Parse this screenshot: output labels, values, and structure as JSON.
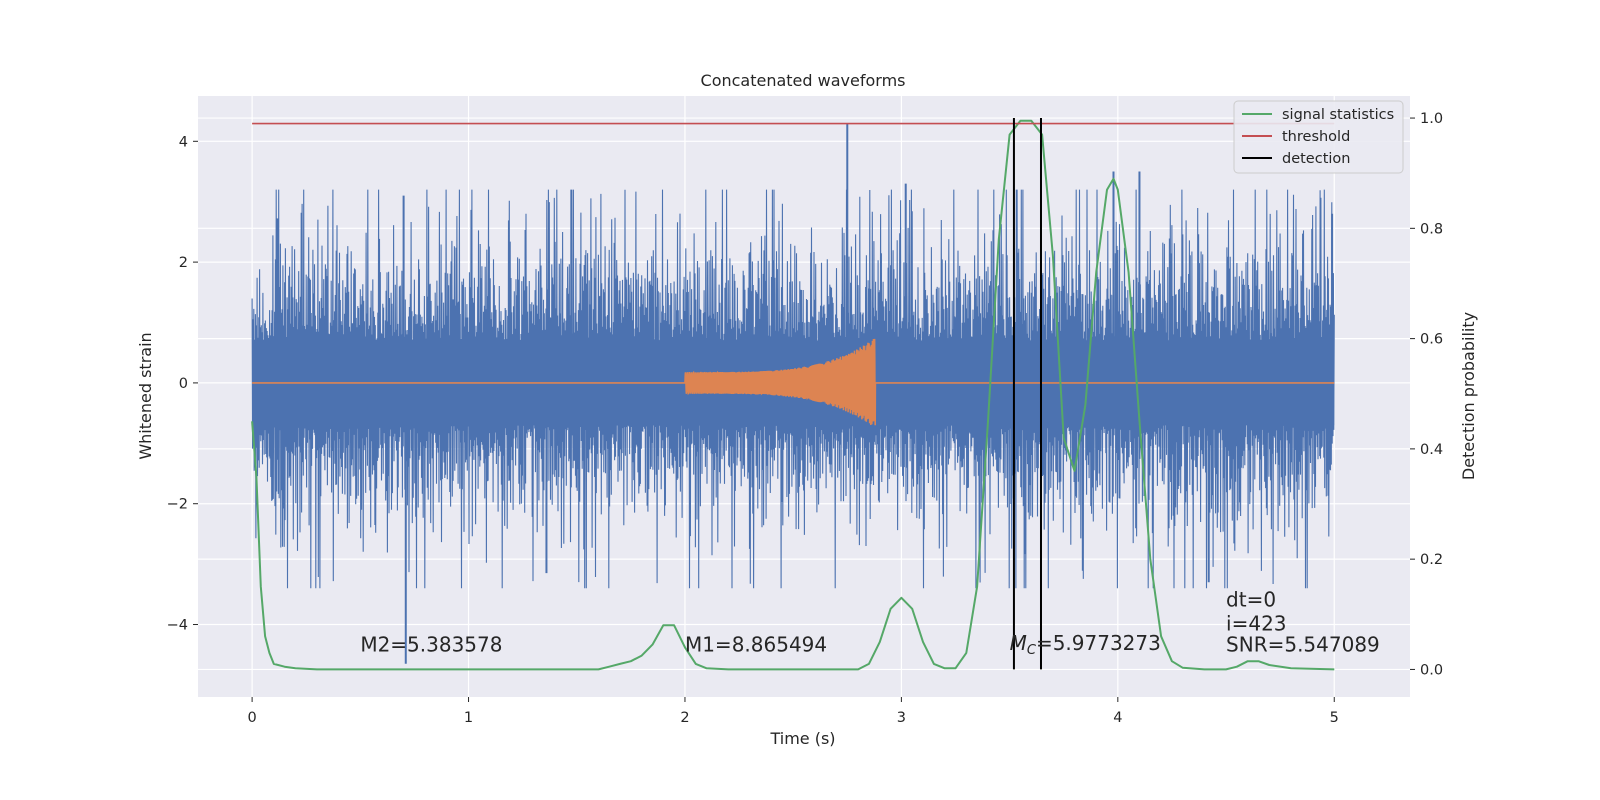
{
  "chart_data": {
    "type": "line",
    "title": "Concatenated waveforms",
    "xlabel": "Time (s)",
    "ylabel": "Whitened strain",
    "y2label": "Detection probability",
    "xlim": [
      -0.25,
      5.35
    ],
    "ylim": [
      -5.2,
      4.75
    ],
    "y2lim": [
      -0.05,
      1.04
    ],
    "xticks": [
      0,
      1,
      2,
      3,
      4,
      5
    ],
    "yticks": [
      -4,
      -2,
      0,
      2,
      4
    ],
    "y2ticks": [
      0.0,
      0.2,
      0.4,
      0.6,
      0.8,
      1.0
    ],
    "xtick_labels": [
      "0",
      "1",
      "2",
      "3",
      "4",
      "5"
    ],
    "ytick_labels": [
      "−4",
      "−2",
      "0",
      "2",
      "4"
    ],
    "y2tick_labels": [
      "0.0",
      "0.2",
      "0.4",
      "0.6",
      "0.8",
      "1.0"
    ],
    "grid": true,
    "legend_position": "top-right",
    "colors": {
      "strain": "#4c72b0",
      "template": "#dd8452",
      "signal_statistics": "#55a868",
      "threshold": "#c44e52",
      "detection": "#000000",
      "background": "#eaeaf2"
    },
    "series": [
      {
        "name": "signal statistics",
        "axis": "right",
        "x": [
          0.0,
          0.02,
          0.04,
          0.06,
          0.08,
          0.1,
          0.15,
          0.2,
          0.3,
          0.5,
          1.0,
          1.5,
          1.6,
          1.65,
          1.7,
          1.75,
          1.8,
          1.85,
          1.9,
          1.95,
          2.0,
          2.05,
          2.1,
          2.2,
          2.5,
          2.8,
          2.85,
          2.9,
          2.95,
          3.0,
          3.05,
          3.1,
          3.15,
          3.2,
          3.25,
          3.3,
          3.35,
          3.4,
          3.45,
          3.5,
          3.55,
          3.6,
          3.65,
          3.7,
          3.75,
          3.8,
          3.85,
          3.9,
          3.95,
          3.98,
          4.0,
          4.05,
          4.1,
          4.15,
          4.2,
          4.25,
          4.3,
          4.4,
          4.5,
          4.55,
          4.6,
          4.65,
          4.7,
          4.8,
          5.0
        ],
        "y": [
          0.45,
          0.35,
          0.15,
          0.06,
          0.03,
          0.01,
          0.005,
          0.002,
          0.0,
          0.0,
          0.0,
          0.0,
          0.0,
          0.005,
          0.01,
          0.015,
          0.025,
          0.045,
          0.08,
          0.08,
          0.04,
          0.01,
          0.002,
          0.0,
          0.0,
          0.0,
          0.01,
          0.05,
          0.11,
          0.13,
          0.11,
          0.05,
          0.01,
          0.002,
          0.002,
          0.03,
          0.15,
          0.45,
          0.78,
          0.97,
          0.995,
          0.995,
          0.97,
          0.75,
          0.42,
          0.36,
          0.48,
          0.72,
          0.87,
          0.89,
          0.87,
          0.72,
          0.45,
          0.2,
          0.06,
          0.015,
          0.003,
          0.0,
          0.0,
          0.005,
          0.015,
          0.015,
          0.008,
          0.002,
          0.0
        ]
      },
      {
        "name": "threshold",
        "axis": "right",
        "x": [
          0,
          5
        ],
        "y": [
          0.99,
          0.99
        ]
      },
      {
        "name": "detection",
        "axis": "right",
        "vlines": [
          3.52,
          3.645
        ]
      }
    ],
    "strain": {
      "axis": "left",
      "x_range": [
        0,
        5
      ],
      "band_amplitude": 0.7,
      "spikes": [
        {
          "x": 0.7,
          "y": 3.1
        },
        {
          "x": 0.71,
          "y": -4.65
        },
        {
          "x": 2.75,
          "y": 4.3
        },
        {
          "x": 3.02,
          "y": 3.3
        },
        {
          "x": 3.98,
          "y": 3.5
        },
        {
          "x": 4.1,
          "y": 3.5
        },
        {
          "x": 4.42,
          "y": -3.3
        },
        {
          "x": 4.99,
          "y": 2.8
        },
        {
          "x": 1.36,
          "y": -3.15
        }
      ]
    },
    "template": {
      "axis": "left",
      "x_range": [
        0,
        5
      ],
      "chirp_start": 2.0,
      "chirp_end": 2.88,
      "start_amplitude": 0.18,
      "peak_amplitude": 0.75
    },
    "annotations": [
      {
        "text": "M2=5.383578",
        "x": 0.5,
        "y": -4.45
      },
      {
        "text": "M1=8.865494",
        "x": 2.0,
        "y": -4.45
      },
      {
        "text_main": "M",
        "text_sub": "C",
        "text_rest": "=5.9773273",
        "x": 3.5,
        "y": -4.42
      },
      {
        "text": "dt=0",
        "x": 4.5,
        "y": -3.7
      },
      {
        "text": "i=423",
        "x": 4.5,
        "y": -4.1
      },
      {
        "text": "SNR=5.547089",
        "x": 4.5,
        "y": -4.45
      }
    ]
  }
}
